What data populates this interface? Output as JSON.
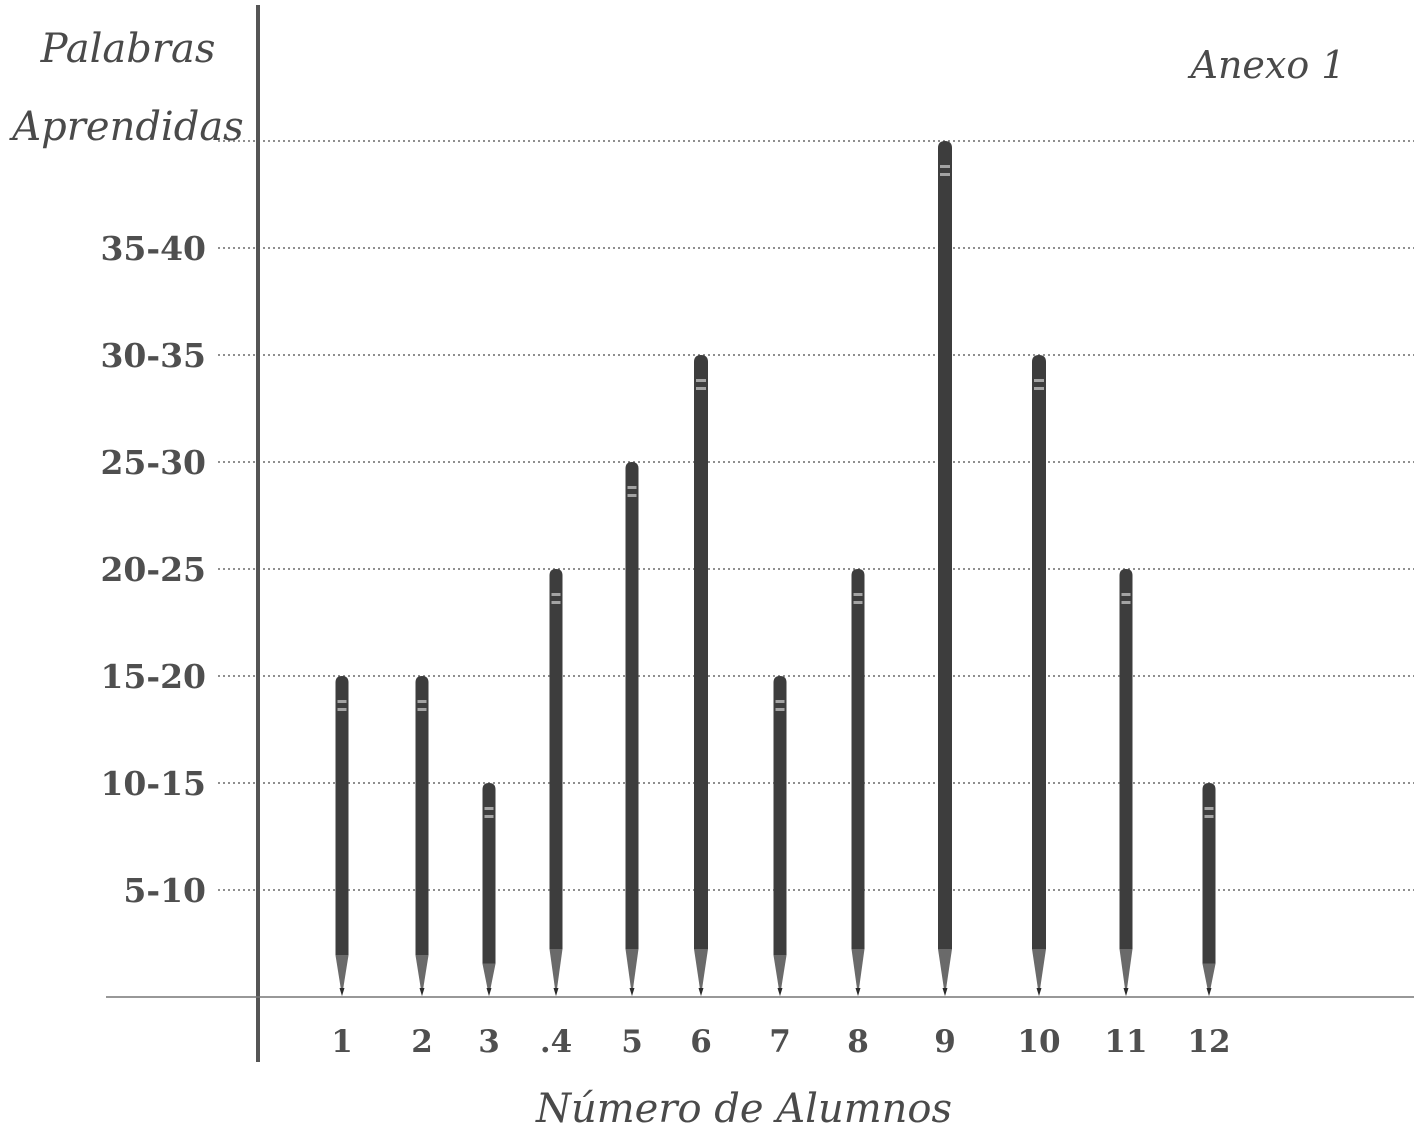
{
  "chart_data": {
    "type": "bar",
    "annex_label": "Anexo 1",
    "ylabel": [
      "Palabras",
      "Aprendidas"
    ],
    "xlabel": "Número de Alumnos",
    "y_tick_labels": [
      "5-10",
      "10-15",
      "15-20",
      "20-25",
      "25-30",
      "30-35",
      "35-40"
    ],
    "ylim": [
      0,
      40
    ],
    "categories": [
      "1",
      "2",
      "3",
      ".4",
      "5",
      "6",
      "7",
      "8",
      "9",
      "10",
      "11",
      "12"
    ],
    "values": [
      15,
      15,
      10,
      20,
      25,
      30,
      15,
      20,
      40,
      30,
      20,
      10
    ],
    "grid": true,
    "bar_style": "pencil",
    "colors": {
      "bar": "#3d3d3d",
      "axis": "#555555",
      "grid": "#6a6a6a"
    }
  }
}
